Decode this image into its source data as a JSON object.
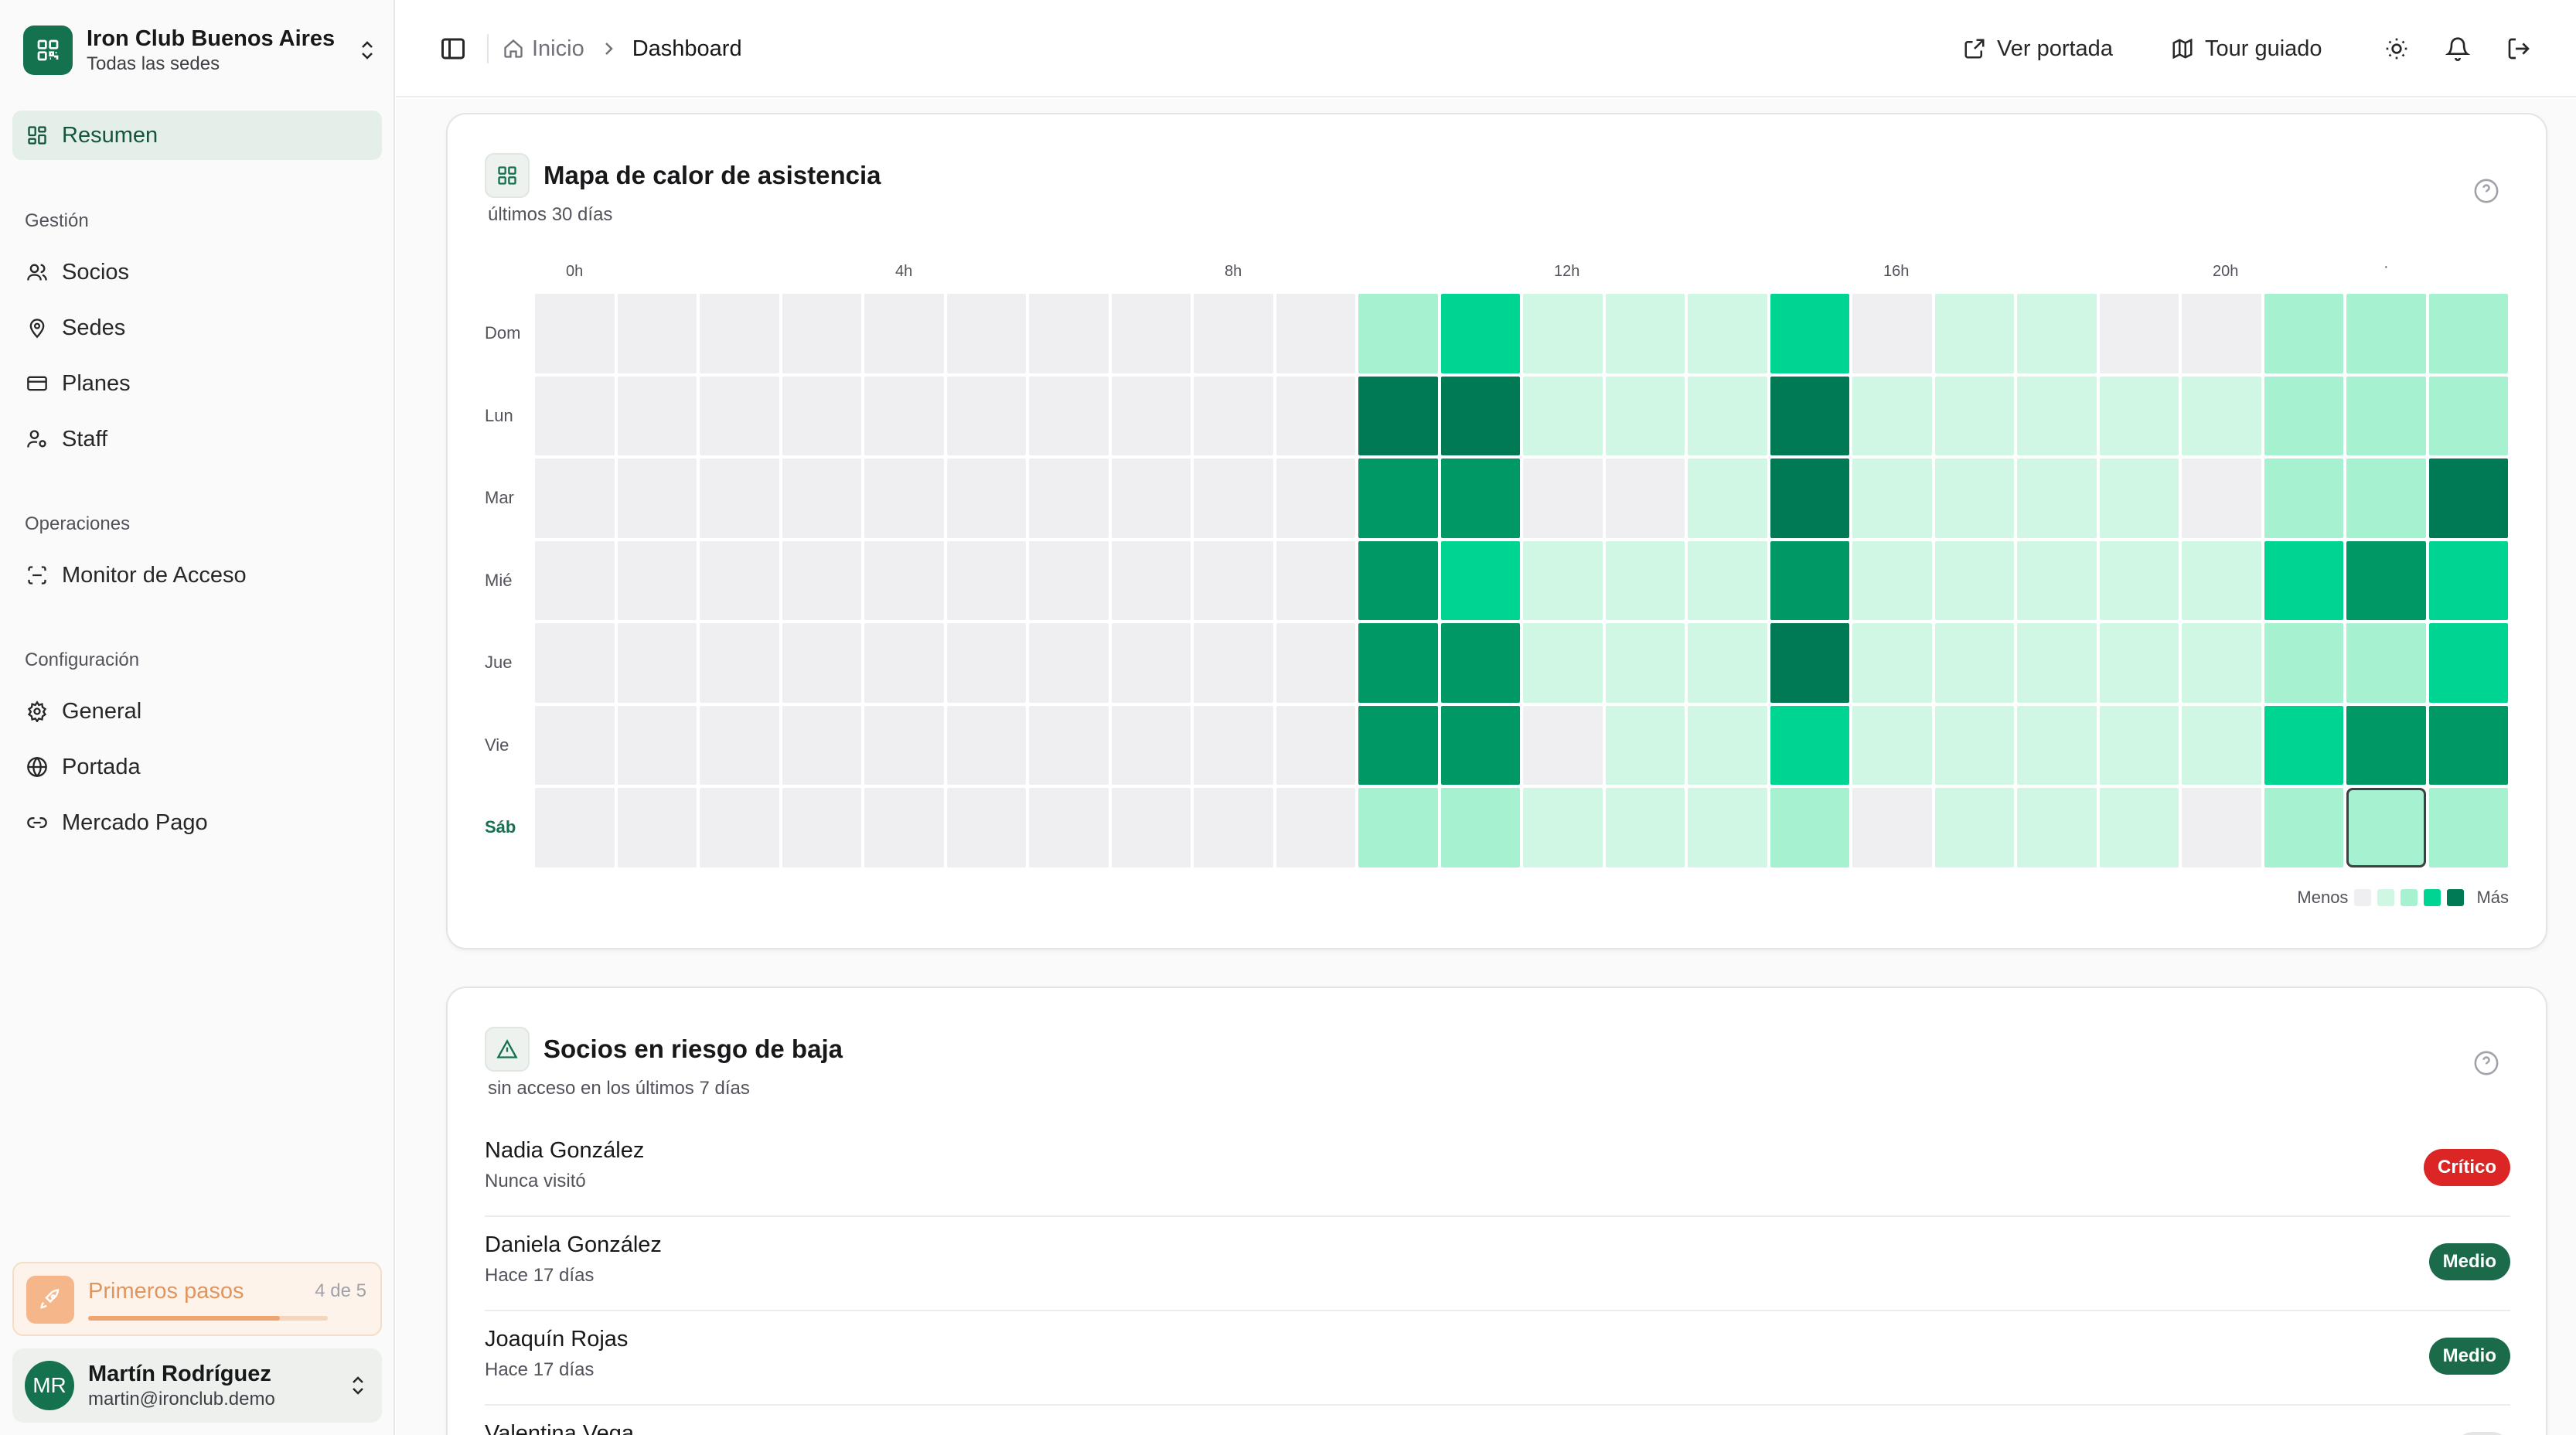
{
  "brand": {
    "name": "Iron Club Buenos Aires",
    "subtitle": "Todas las sedes",
    "color": "#15724f"
  },
  "sidebar": {
    "active": {
      "label": "Resumen",
      "icon": "dashboard-icon"
    },
    "sections": [
      {
        "label": "Gestión",
        "items": [
          {
            "label": "Socios",
            "icon": "users-icon"
          },
          {
            "label": "Sedes",
            "icon": "map-pin-icon"
          },
          {
            "label": "Planes",
            "icon": "credit-card-icon"
          },
          {
            "label": "Staff",
            "icon": "user-cog-icon"
          }
        ]
      },
      {
        "label": "Operaciones",
        "items": [
          {
            "label": "Monitor de Acceso",
            "icon": "scan-icon"
          }
        ]
      },
      {
        "label": "Configuración",
        "items": [
          {
            "label": "General",
            "icon": "gear-icon"
          },
          {
            "label": "Portada",
            "icon": "globe-icon"
          },
          {
            "label": "Mercado Pago",
            "icon": "link-icon"
          }
        ]
      }
    ],
    "onboarding": {
      "label": "Primeros pasos",
      "count": "4 de 5",
      "progress": 0.8
    },
    "user": {
      "initials": "MR",
      "name": "Martín Rodríguez",
      "email": "martin@ironclub.demo"
    }
  },
  "header": {
    "breadcrumb": {
      "home": "Inicio",
      "current": "Dashboard"
    },
    "actions": {
      "view_portal": "Ver portada",
      "guided_tour": "Tour guiado"
    }
  },
  "heatmap_card": {
    "title": "Mapa de calor de asistencia",
    "subtitle": "últimos 30 días",
    "legend_less": "Menos",
    "legend_more": "Más",
    "scale_colors": [
      "#efeff1",
      "#d0f7e3",
      "#a6f1d0",
      "#00d492",
      "#009966",
      "#007a55"
    ],
    "legend_colors": [
      "#efeff1",
      "#d0f7e3",
      "#a6f1d0",
      "#00d492",
      "#007a55"
    ],
    "hour_labels": [
      "0h",
      "4h",
      "8h",
      "12h",
      "16h",
      "20h"
    ],
    "extra_mark": "·",
    "days": [
      "Dom",
      "Lun",
      "Mar",
      "Mié",
      "Jue",
      "Vie",
      "Sáb"
    ],
    "today_index": 6,
    "selected_cell": {
      "day": 6,
      "hour": 22
    },
    "levels": [
      [
        0,
        0,
        0,
        0,
        0,
        0,
        0,
        0,
        0,
        0,
        2,
        3,
        1,
        1,
        1,
        3,
        0,
        1,
        1,
        0,
        0,
        2,
        2,
        2
      ],
      [
        0,
        0,
        0,
        0,
        0,
        0,
        0,
        0,
        0,
        0,
        5,
        5,
        1,
        1,
        1,
        5,
        1,
        1,
        1,
        1,
        1,
        2,
        2,
        2
      ],
      [
        0,
        0,
        0,
        0,
        0,
        0,
        0,
        0,
        0,
        0,
        4,
        4,
        0,
        0,
        1,
        5,
        1,
        1,
        1,
        1,
        0,
        2,
        2,
        5
      ],
      [
        0,
        0,
        0,
        0,
        0,
        0,
        0,
        0,
        0,
        0,
        4,
        3,
        1,
        1,
        1,
        4,
        1,
        1,
        1,
        1,
        1,
        3,
        4,
        3
      ],
      [
        0,
        0,
        0,
        0,
        0,
        0,
        0,
        0,
        0,
        0,
        4,
        4,
        1,
        1,
        1,
        5,
        1,
        1,
        1,
        1,
        1,
        2,
        2,
        3
      ],
      [
        0,
        0,
        0,
        0,
        0,
        0,
        0,
        0,
        0,
        0,
        4,
        4,
        0,
        1,
        1,
        3,
        1,
        1,
        1,
        1,
        1,
        3,
        4,
        4
      ],
      [
        0,
        0,
        0,
        0,
        0,
        0,
        0,
        0,
        0,
        0,
        2,
        2,
        1,
        1,
        1,
        2,
        0,
        1,
        1,
        1,
        0,
        2,
        2,
        2
      ]
    ]
  },
  "risk_card": {
    "title": "Socios en riesgo de baja",
    "subtitle": "sin acceso en los últimos 7 días",
    "members": [
      {
        "name": "Nadia González",
        "last_visit": "Nunca visitó",
        "risk": "Crítico",
        "color": "#dc2626"
      },
      {
        "name": "Daniela González",
        "last_visit": "Hace 17 días",
        "risk": "Medio",
        "color": "#1b6b4a"
      },
      {
        "name": "Joaquín Rojas",
        "last_visit": "Hace 17 días",
        "risk": "Medio",
        "color": "#1b6b4a"
      },
      {
        "name": "Valentina Vega",
        "last_visit": "",
        "risk": "",
        "color": "#e4e4e7"
      }
    ]
  }
}
